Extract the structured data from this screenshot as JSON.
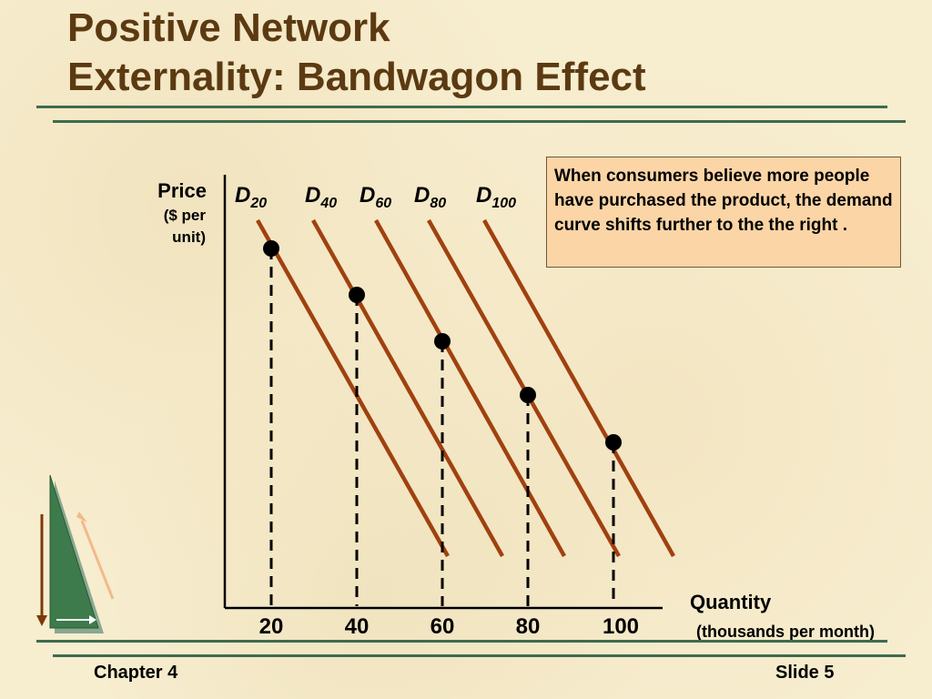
{
  "slide": {
    "title_line1": "Positive Network",
    "title_line2": "Externality: Bandwagon Effect",
    "chapter": "Chapter 4",
    "slide_number": "Slide 5"
  },
  "note": "When consumers believe more people have purchased the product, the demand curve shifts further to the the right .",
  "diagram": {
    "y_label": "Price",
    "y_label_unit_line1": "($ per",
    "y_label_unit_line2": "unit)",
    "x_label": "Quantity",
    "x_label_unit": "(thousands per month)",
    "curves": [
      {
        "letter": "D",
        "sub": "20"
      },
      {
        "letter": "D",
        "sub": "40"
      },
      {
        "letter": "D",
        "sub": "60"
      },
      {
        "letter": "D",
        "sub": "80"
      },
      {
        "letter": "D",
        "sub": "100"
      }
    ],
    "x_ticks": [
      "20",
      "40",
      "60",
      "80",
      "100"
    ]
  },
  "colors": {
    "curve": "#a0410f",
    "rule": "#3f6b4e",
    "title": "#5b3a12",
    "note_bg": "#fbd5a6"
  }
}
